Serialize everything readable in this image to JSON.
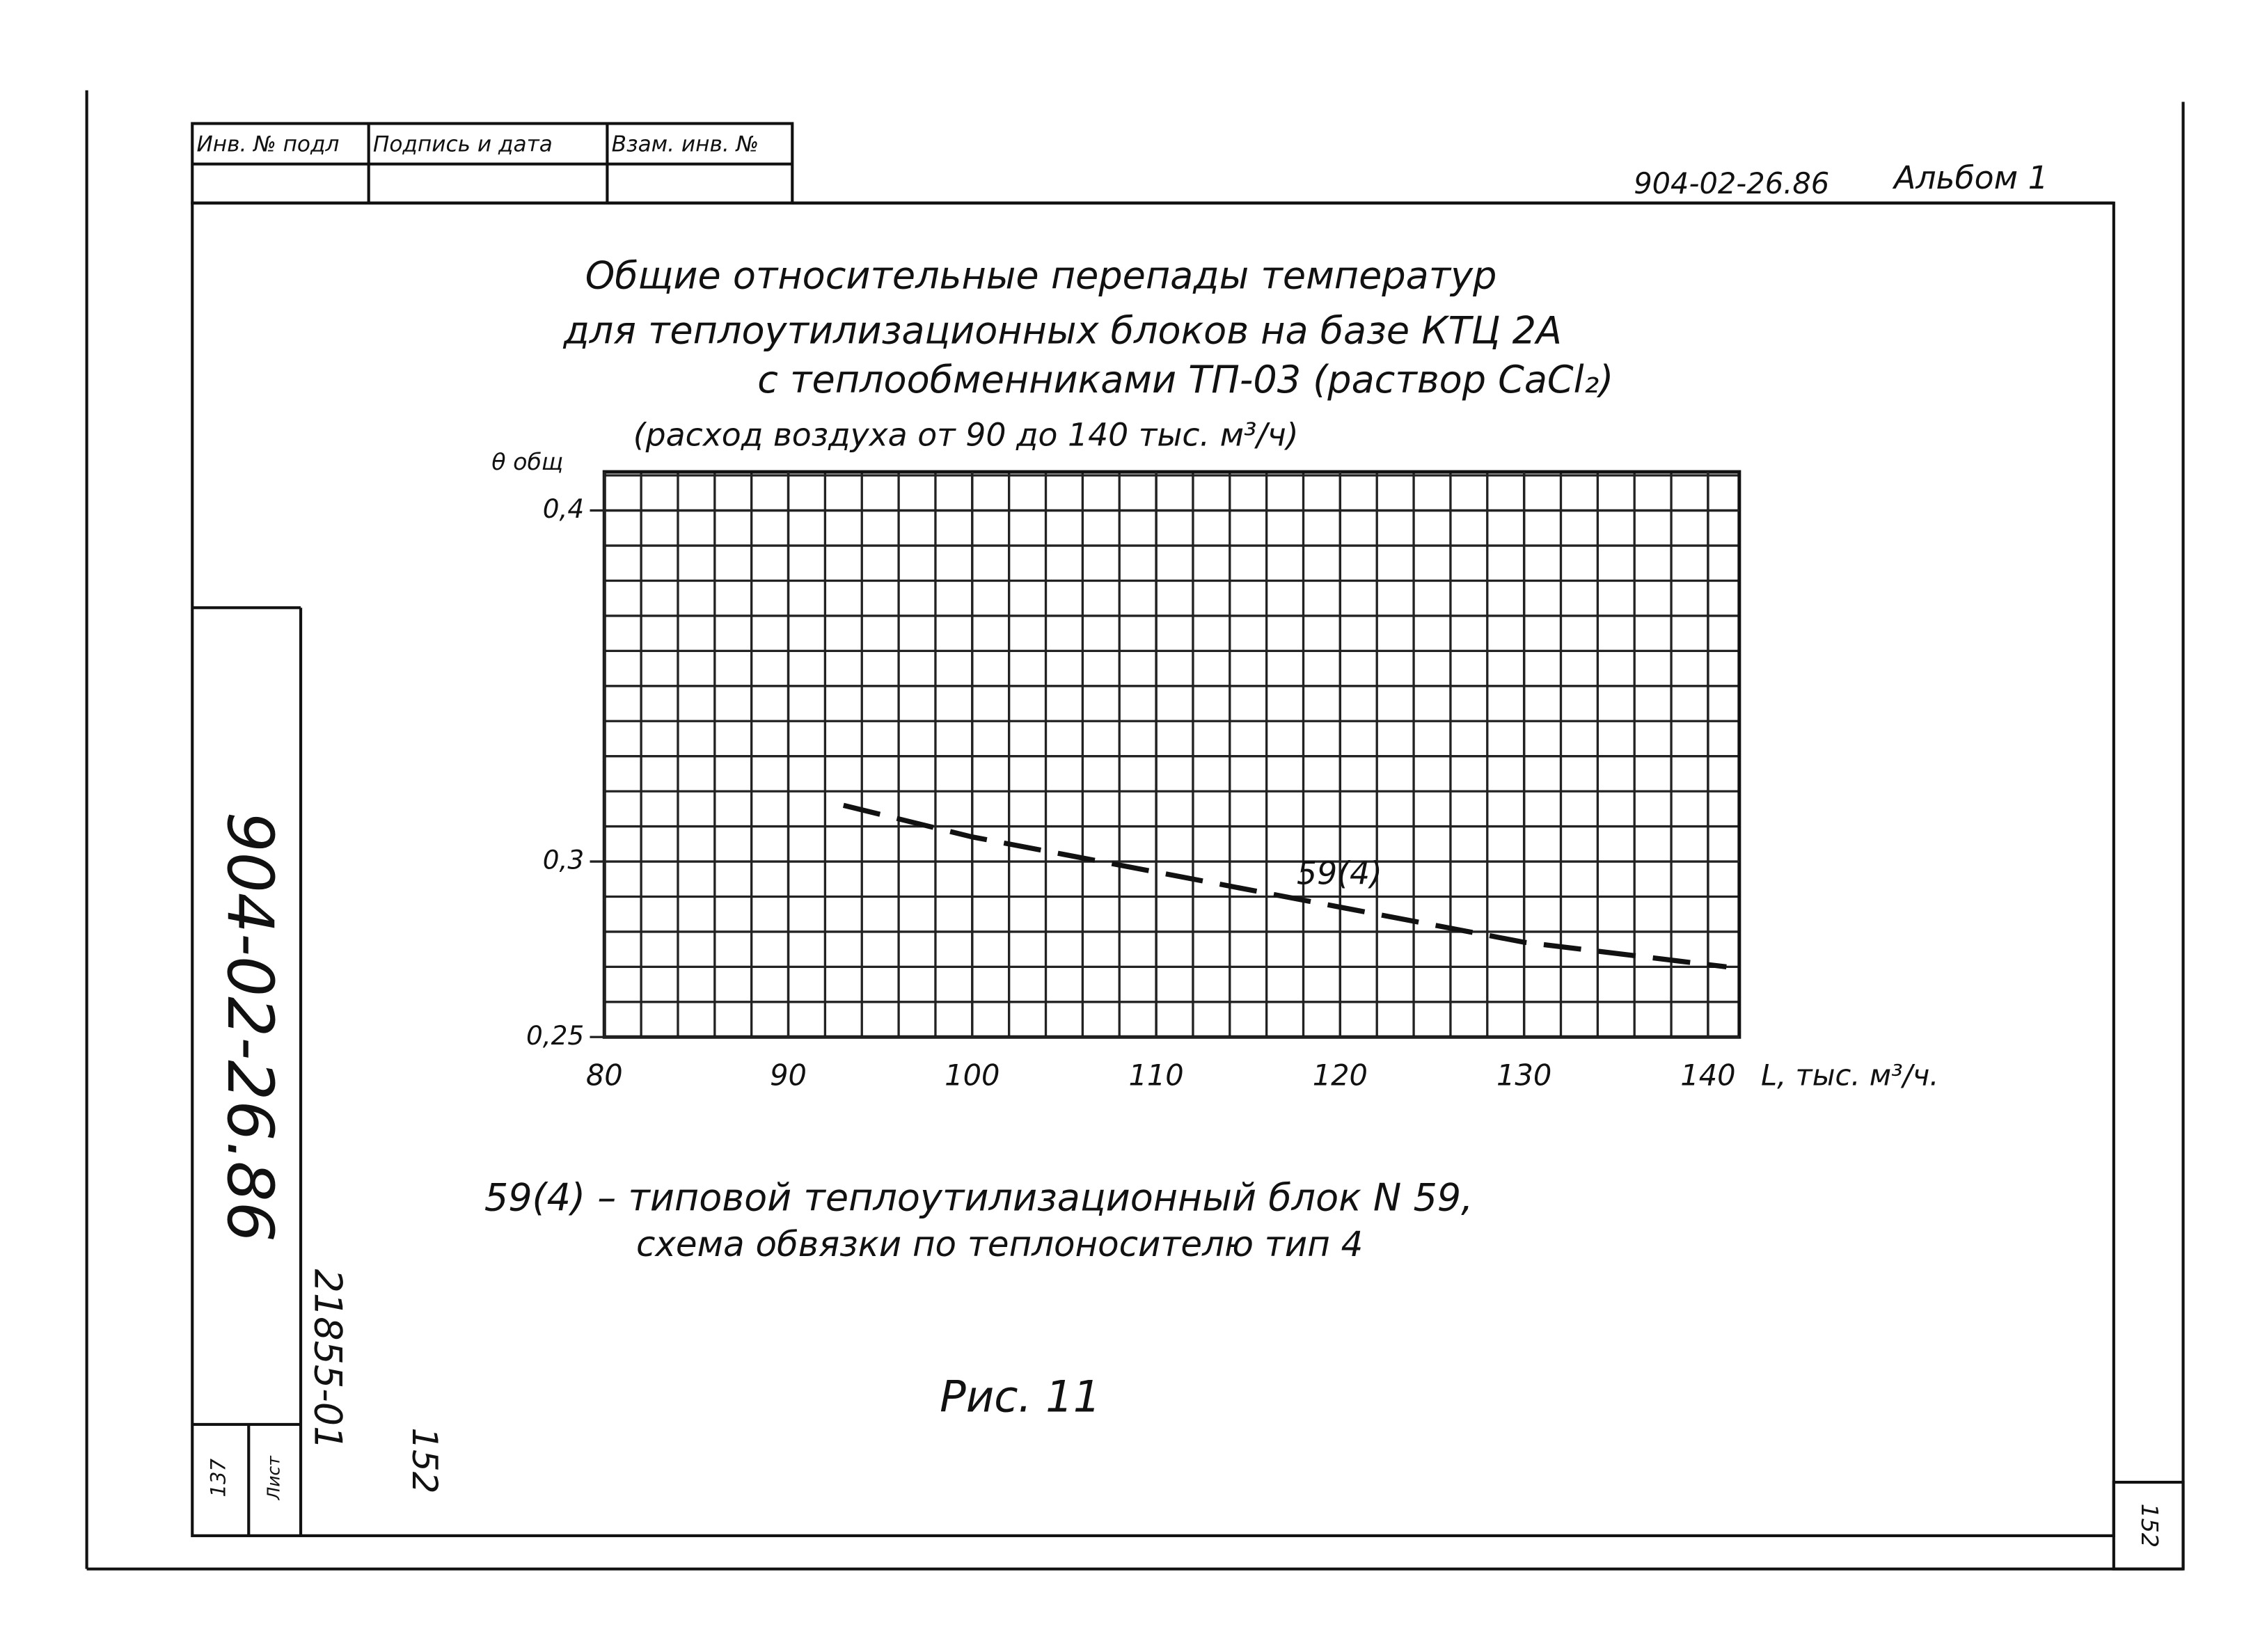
{
  "header": {
    "cells": [
      "Инв. № подл",
      "Подпись и дата",
      "Взам. инв. №"
    ],
    "code": "904-02-26.86",
    "album": "Альбом 1"
  },
  "chart_data": {
    "type": "line",
    "title_lines": [
      "Общие относительные перепады температур",
      "для теплоутилизационных блоков на базе КТЦ 2А",
      "с теплообменниками ТП-03 (раствор CaCl₂)"
    ],
    "subtitle": "(расход воздуха от 90 до 140 тыс. м³/ч)",
    "y_label": "θ общ",
    "x_label": "L, тыс. м³/ч.",
    "x": [
      93,
      100,
      110,
      120,
      130,
      141
    ],
    "series": [
      {
        "name": "59(4)",
        "color": "#111111",
        "values": [
          0.316,
          0.307,
          0.297,
          0.287,
          0.277,
          0.27
        ],
        "dashed": true
      }
    ],
    "xlim": [
      80,
      141.7
    ],
    "ylim": [
      0.25,
      0.411
    ],
    "xticks": [
      80,
      90,
      100,
      110,
      120,
      130,
      140
    ],
    "yticks": [
      {
        "value": 0.25,
        "label": "0,25"
      },
      {
        "value": 0.3,
        "label": "0,3"
      },
      {
        "value": 0.4,
        "label": "0,4"
      }
    ],
    "grid": true
  },
  "notes": [
    "59(4) – типовой теплоутилизационный блок N 59,",
    "схема обвязки по теплоносителю тип 4"
  ],
  "figure": "Рис. 11",
  "stamp": {
    "code": "904-02-26.86",
    "number": "21855-01",
    "page": "152",
    "sheet": "137",
    "sheet_label": "Лист",
    "corner_page": "152"
  }
}
